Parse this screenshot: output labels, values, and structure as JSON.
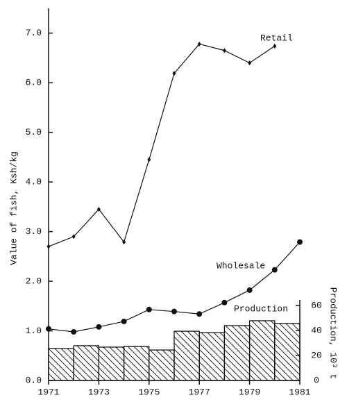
{
  "chart_data": {
    "type": "line",
    "y_label": "Value of fish, Ksh/kg",
    "y2_label": "Production, 10³ t",
    "xlim": [
      1971,
      1981
    ],
    "xticks": [
      1971,
      1973,
      1975,
      1977,
      1979,
      1981
    ],
    "ylim": [
      0,
      7.5
    ],
    "yticks": [
      {
        "value": 0,
        "label": "0.0"
      },
      {
        "value": 1,
        "label": "1.0"
      },
      {
        "value": 2,
        "label": "2.0"
      },
      {
        "value": 3,
        "label": "3.0"
      },
      {
        "value": 4,
        "label": "4.0"
      },
      {
        "value": 5,
        "label": "5.0"
      },
      {
        "value": 6,
        "label": "6.0"
      },
      {
        "value": 7,
        "label": "7.0"
      }
    ],
    "y2lim": [
      0,
      60
    ],
    "y2ticks": [
      0,
      20,
      40,
      60
    ],
    "series": [
      {
        "name": "Retail",
        "type": "line",
        "marker": "diamond",
        "color": "#111",
        "x": [
          1971,
          1972,
          1973,
          1974,
          1975,
          1976,
          1977,
          1978,
          1979,
          1980
        ],
        "values": [
          2.7,
          2.9,
          3.45,
          2.79,
          4.45,
          6.19,
          6.78,
          6.65,
          6.4,
          6.74
        ]
      },
      {
        "name": "Wholesale",
        "type": "line",
        "marker": "circle",
        "color": "#111",
        "x": [
          1971,
          1972,
          1973,
          1974,
          1975,
          1976,
          1977,
          1978,
          1979,
          1980,
          1981
        ],
        "values": [
          1.04,
          0.98,
          1.08,
          1.19,
          1.43,
          1.39,
          1.34,
          1.57,
          1.82,
          2.23,
          2.79
        ]
      },
      {
        "name": "Production",
        "type": "bar",
        "axis": "y2",
        "color": "#111",
        "x": [
          1971,
          1972,
          1973,
          1974,
          1975,
          1976,
          1977,
          1978,
          1979,
          1980
        ],
        "values": [
          25.6,
          27.8,
          26.7,
          27.2,
          24.4,
          39.4,
          38.3,
          43.9,
          47.8,
          45.6
        ]
      }
    ]
  }
}
